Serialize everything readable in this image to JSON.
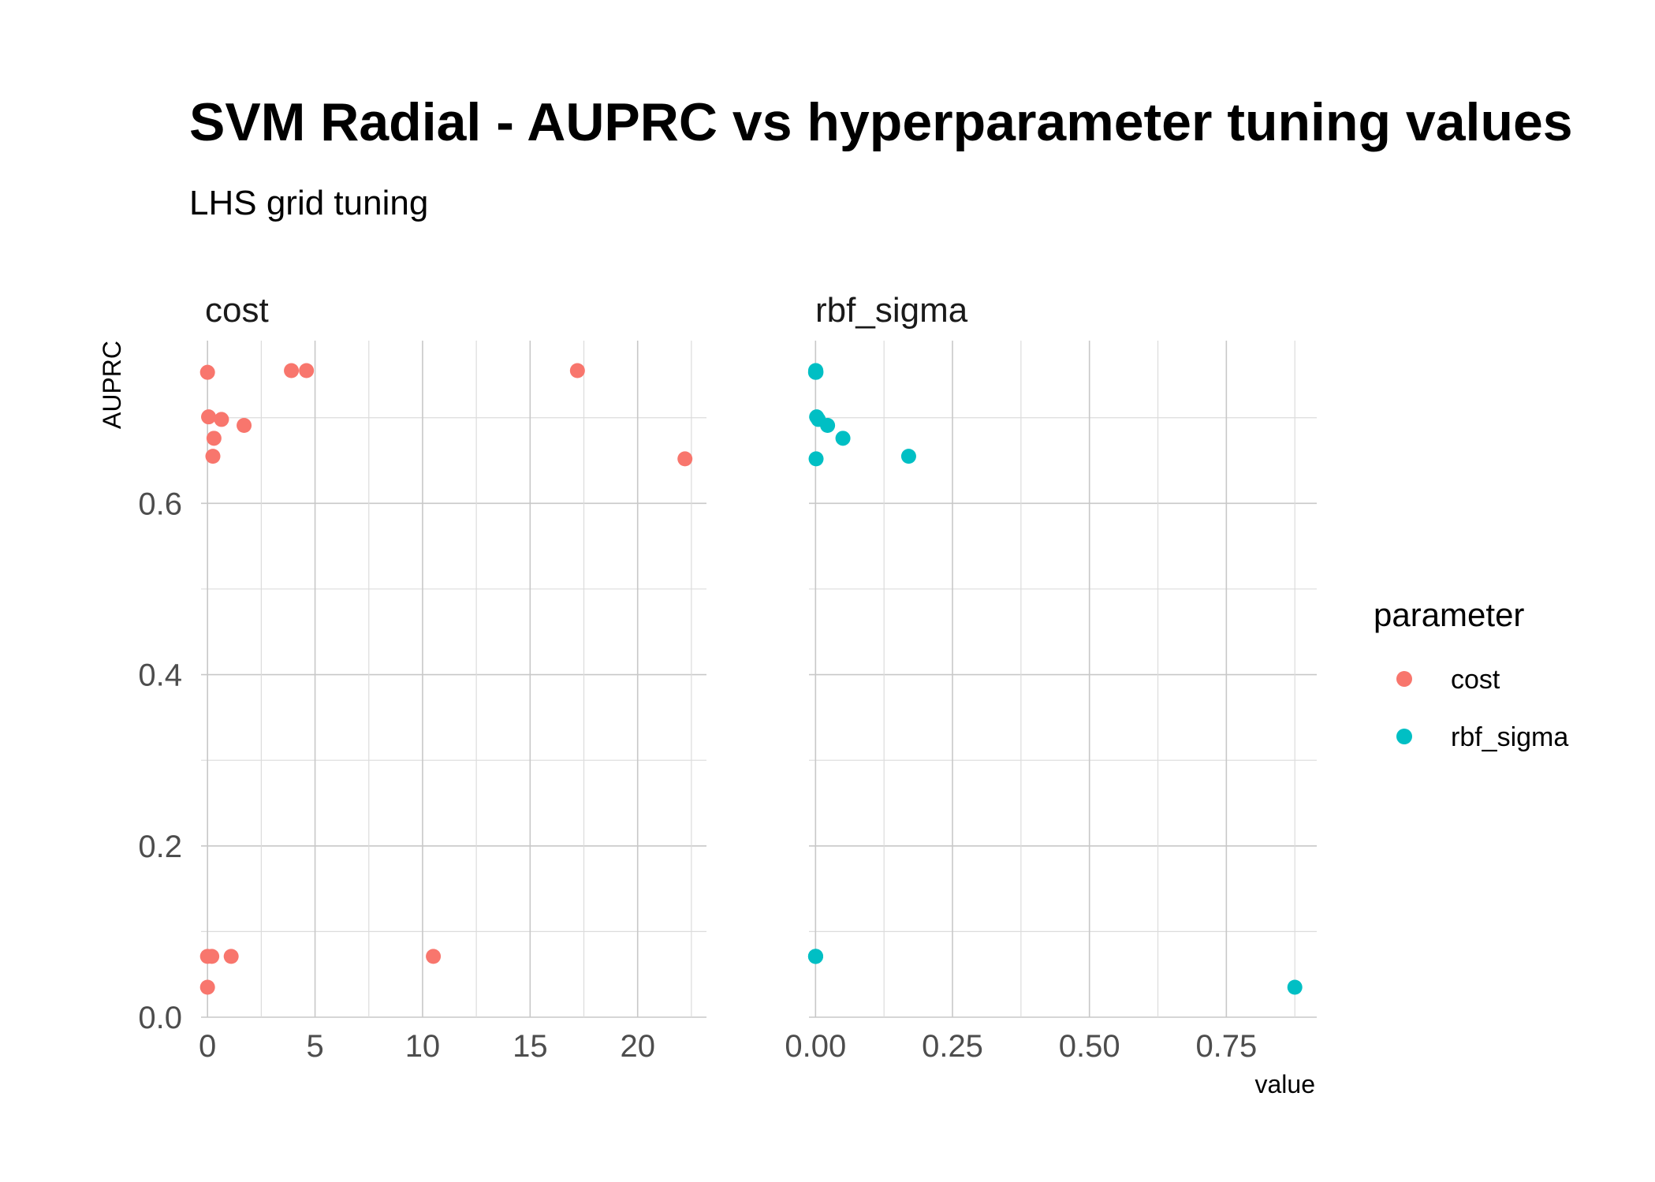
{
  "chart_data": {
    "type": "scatter",
    "title": "SVM Radial - AUPRC vs hyperparameter tuning values",
    "subtitle": "LHS grid tuning",
    "xlabel": "value",
    "ylabel": "AUPRC",
    "grid": true,
    "legend": {
      "title": "parameter",
      "position": "right",
      "entries": [
        {
          "label": "cost",
          "color": "#F8766D"
        },
        {
          "label": "rbf_sigma",
          "color": "#00BFC4"
        }
      ]
    },
    "y_ticks": [
      {
        "value": 0.0,
        "label": "0.0"
      },
      {
        "value": 0.2,
        "label": "0.2"
      },
      {
        "value": 0.4,
        "label": "0.4"
      },
      {
        "value": 0.6,
        "label": "0.6"
      }
    ],
    "ylim": [
      0.0,
      0.79
    ],
    "panels": [
      {
        "name": "cost",
        "color": "#F8766D",
        "xlim": [
          -0.3,
          23.2
        ],
        "x_ticks": [
          {
            "value": 0,
            "label": "0"
          },
          {
            "value": 5,
            "label": "5"
          },
          {
            "value": 10,
            "label": "10"
          },
          {
            "value": 15,
            "label": "15"
          },
          {
            "value": 20,
            "label": "20"
          }
        ],
        "points": [
          {
            "x": 0.0,
            "y": 0.753
          },
          {
            "x": 3.9,
            "y": 0.755
          },
          {
            "x": 4.6,
            "y": 0.755
          },
          {
            "x": 17.2,
            "y": 0.755
          },
          {
            "x": 0.05,
            "y": 0.701
          },
          {
            "x": 0.65,
            "y": 0.698
          },
          {
            "x": 1.7,
            "y": 0.691
          },
          {
            "x": 0.3,
            "y": 0.676
          },
          {
            "x": 0.25,
            "y": 0.655
          },
          {
            "x": 22.2,
            "y": 0.652
          },
          {
            "x": 0.0,
            "y": 0.071
          },
          {
            "x": 0.2,
            "y": 0.071
          },
          {
            "x": 1.1,
            "y": 0.071
          },
          {
            "x": 10.5,
            "y": 0.071
          },
          {
            "x": 0.0,
            "y": 0.035
          }
        ]
      },
      {
        "name": "rbf_sigma",
        "color": "#00BFC4",
        "xlim": [
          -0.012,
          0.915
        ],
        "x_ticks": [
          {
            "value": 0.0,
            "label": "0.00"
          },
          {
            "value": 0.25,
            "label": "0.25"
          },
          {
            "value": 0.5,
            "label": "0.50"
          },
          {
            "value": 0.75,
            "label": "0.75"
          }
        ],
        "points": [
          {
            "x": 0.0005,
            "y": 0.755
          },
          {
            "x": 0.0002,
            "y": 0.755
          },
          {
            "x": 0.0008,
            "y": 0.753
          },
          {
            "x": 0.0,
            "y": 0.753
          },
          {
            "x": 0.002,
            "y": 0.701
          },
          {
            "x": 0.005,
            "y": 0.698
          },
          {
            "x": 0.022,
            "y": 0.691
          },
          {
            "x": 0.05,
            "y": 0.676
          },
          {
            "x": 0.17,
            "y": 0.655
          },
          {
            "x": 0.001,
            "y": 0.652
          },
          {
            "x": 0.0,
            "y": 0.071
          },
          {
            "x": 0.0001,
            "y": 0.071
          },
          {
            "x": 0.0002,
            "y": 0.071
          },
          {
            "x": 0.0003,
            "y": 0.071
          },
          {
            "x": 0.875,
            "y": 0.035
          }
        ]
      }
    ]
  }
}
